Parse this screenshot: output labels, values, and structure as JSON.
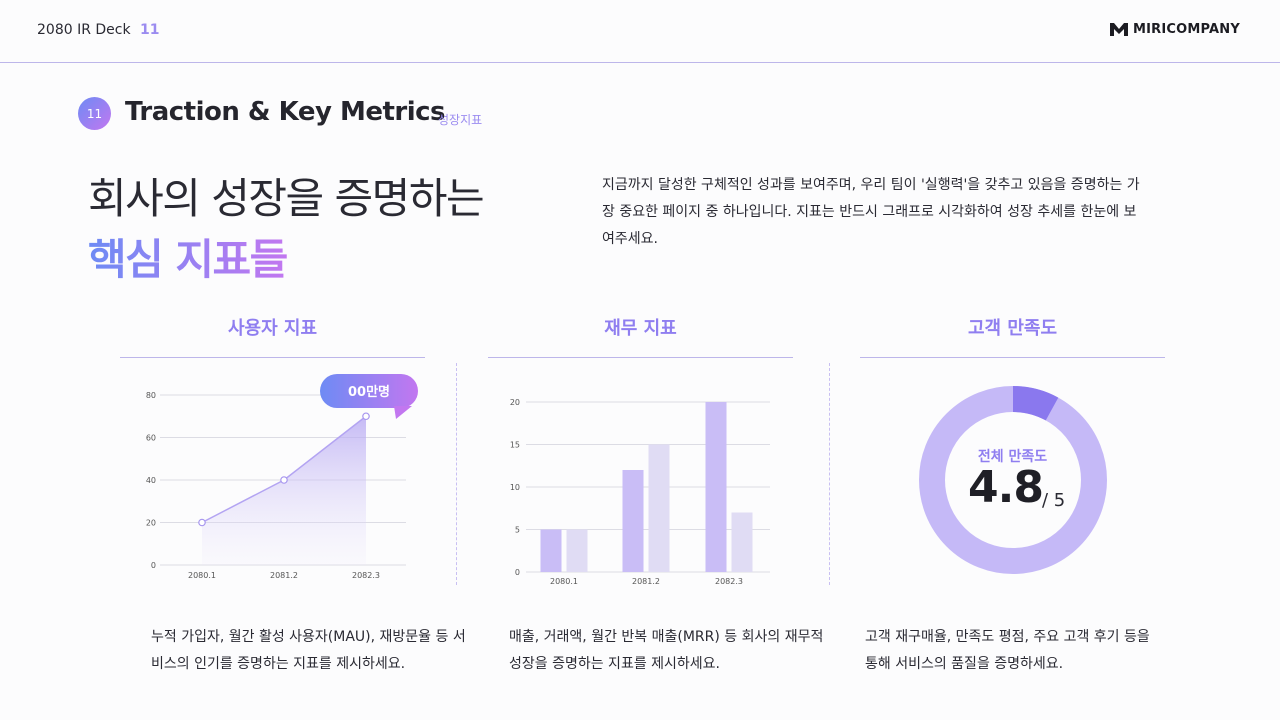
{
  "header": {
    "deck_name": "2080 IR Deck",
    "page": "11",
    "brand": "MIRICOMPANY"
  },
  "section": {
    "number": "11",
    "title": "Traction & Key Metrics",
    "subtitle": "성장지표"
  },
  "headline": {
    "line1": "회사의 성장을 증명하는",
    "line2": "핵심 지표들"
  },
  "intro": "지금까지 달성한 구체적인 성과를 보여주며, 우리 팀이 '실행력'을 갖추고 있음을 증명하는 가장 중요한 페이지 중 하나입니다. 지표는 반드시 그래프로 시각화하여 성장 추세를 한눈에 보여주세요.",
  "columns": [
    {
      "title": "사용자 지표",
      "description": "누적 가입자, 월간 활성 사용자(MAU), 재방문율 등 서비스의 인기를 증명하는 지표를 제시하세요."
    },
    {
      "title": "재무 지표",
      "description": "매출, 거래액, 월간 반복 매출(MRR) 등 회사의 재무적 성장을 증명하는 지표를 제시하세요."
    },
    {
      "title": "고객 만족도",
      "description": "고객 재구매율, 만족도 평점, 주요 고객 후기 등을 통해 서비스의 품질을 증명하세요."
    }
  ],
  "donut": {
    "label": "전체 만족도",
    "score": "4.8",
    "max": "/ 5"
  },
  "colors": {
    "accent": "#8f7ef0",
    "gradient_start": "#6e8bf4",
    "gradient_end": "#c277f0",
    "bar_dark": "#c9bdf6",
    "bar_light": "#e0dcf4"
  },
  "chart_data": [
    {
      "type": "area",
      "categories": [
        "2080.1",
        "2081.2",
        "2082.3"
      ],
      "values": [
        20,
        40,
        70
      ],
      "ylim": [
        0,
        80
      ],
      "yticks": [
        0,
        20,
        40,
        60,
        80
      ],
      "grid": true,
      "callout": "00만명"
    },
    {
      "type": "bar",
      "categories": [
        "2080.1",
        "2081.2",
        "2082.3"
      ],
      "series": [
        {
          "values": [
            5,
            12,
            20
          ]
        },
        {
          "values": [
            5,
            15,
            7
          ]
        }
      ],
      "ylim": [
        0,
        20
      ],
      "yticks": [
        0,
        5,
        10,
        15,
        20
      ],
      "grid": true
    },
    {
      "type": "pie",
      "values": [
        8,
        92
      ]
    }
  ]
}
